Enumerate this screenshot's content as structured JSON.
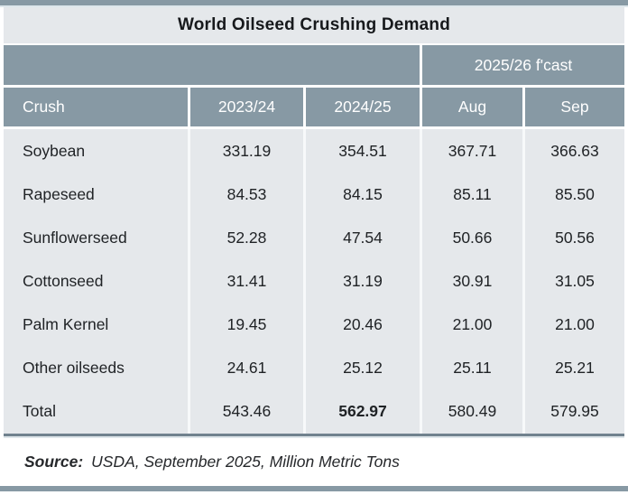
{
  "chart_data": {
    "type": "table",
    "title": "World Oilseed Crushing Demand",
    "column_group": {
      "label": "2025/26 f'cast",
      "spans": [
        "Aug",
        "Sep"
      ]
    },
    "columns": [
      "Crush",
      "2023/24",
      "2024/25",
      "Aug",
      "Sep"
    ],
    "rows": [
      {
        "label": "Soybean",
        "values": [
          "331.19",
          "354.51",
          "367.71",
          "366.63"
        ]
      },
      {
        "label": "Rapeseed",
        "values": [
          "84.53",
          "84.15",
          "85.11",
          "85.50"
        ]
      },
      {
        "label": "Sunflowerseed",
        "values": [
          "52.28",
          "47.54",
          "50.66",
          "50.56"
        ]
      },
      {
        "label": "Cottonseed",
        "values": [
          "31.41",
          "31.19",
          "30.91",
          "31.05"
        ]
      },
      {
        "label": "Palm Kernel",
        "values": [
          "19.45",
          "20.46",
          "21.00",
          "21.00"
        ]
      },
      {
        "label": "Other oilseeds",
        "values": [
          "24.61",
          "25.12",
          "25.11",
          "25.21"
        ]
      },
      {
        "label": "Total",
        "values": [
          "543.46",
          "562.97",
          "580.49",
          "579.95"
        ],
        "is_total": true,
        "bold_values": [
          1
        ]
      }
    ],
    "units": "Million Metric Tons",
    "legend_position": "none",
    "grid": "column-dividers"
  },
  "source": {
    "prefix": "Source:",
    "text": "USDA, September 2025, Million Metric Tons"
  },
  "colors": {
    "accent_slate": "#8799a4",
    "band_light": "#e5e8eb",
    "header_text": "#ffffff",
    "body_text": "#202326",
    "total_rule": "#71828e"
  }
}
